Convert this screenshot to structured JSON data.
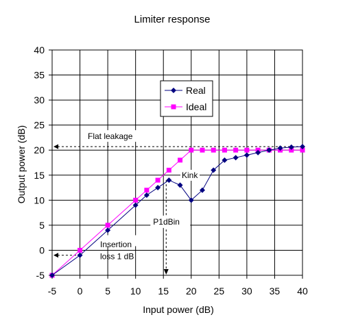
{
  "chart_data": {
    "type": "line",
    "title": "Limiter response",
    "xlabel": "Input power (dB)",
    "ylabel": "Output power (dB)",
    "xlim": [
      -5,
      40
    ],
    "ylim": [
      -5,
      40
    ],
    "x_ticks": [
      -5,
      0,
      5,
      10,
      15,
      20,
      25,
      30,
      35,
      40
    ],
    "y_ticks": [
      -5,
      0,
      5,
      10,
      15,
      20,
      25,
      30,
      35,
      40
    ],
    "grid": true,
    "legend": "inside-top-center",
    "series": [
      {
        "name": "Real",
        "color": "#000080",
        "marker": "diamond",
        "x": [
          -5,
          0,
          5,
          10,
          12,
          14,
          16,
          18,
          20,
          22,
          24,
          26,
          28,
          30,
          32,
          34,
          36,
          38,
          40
        ],
        "y": [
          -5,
          -1,
          4,
          9,
          11,
          12.5,
          14,
          13,
          10,
          12,
          16,
          18,
          18.5,
          19,
          19.5,
          20,
          20.4,
          20.6,
          20.7
        ]
      },
      {
        "name": "Ideal",
        "color": "#ff00ff",
        "marker": "square",
        "x": [
          -5,
          0,
          5,
          10,
          12,
          14,
          16,
          18,
          20,
          22,
          24,
          26,
          28,
          30,
          32,
          34,
          36,
          38,
          40
        ],
        "y": [
          -5,
          0,
          5,
          10,
          12,
          14,
          16,
          18,
          20,
          20,
          20,
          20,
          20,
          20,
          20,
          20,
          20,
          20,
          20
        ]
      }
    ],
    "annotations": {
      "flat_leakage": "Flat leakage",
      "kink": "Kink",
      "p1db": "P1dBin",
      "insertion_line1": "Insertion",
      "insertion_line2": "loss 1 dB"
    },
    "reference_values": {
      "flat_leakage_y": 20.7,
      "p1db_x": 15.5,
      "insertion_y": -1
    }
  }
}
